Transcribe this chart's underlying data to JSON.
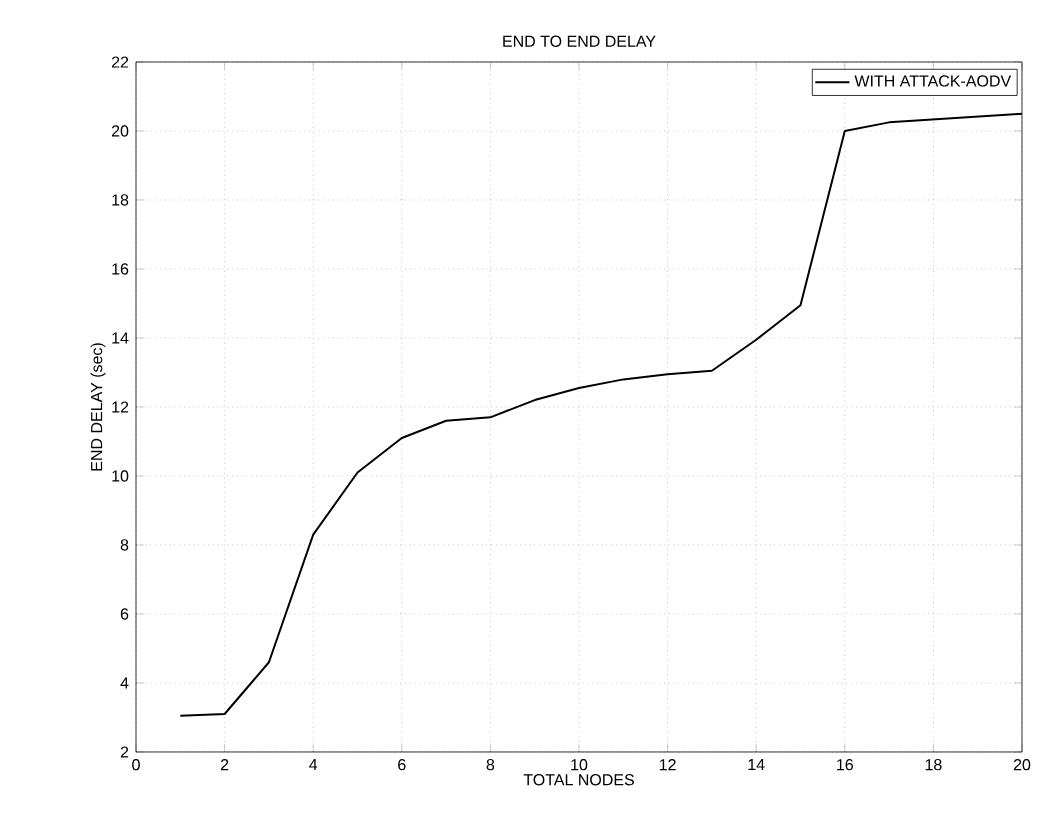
{
  "chart_data": {
    "type": "line",
    "title": "END TO END DELAY",
    "xlabel": "TOTAL NODES",
    "ylabel": "END DELAY (sec)",
    "x": [
      1,
      2,
      3,
      4,
      5,
      6,
      7,
      8,
      9,
      10,
      11,
      12,
      13,
      14,
      15,
      16,
      17,
      20
    ],
    "series": [
      {
        "name": "WITH ATTACK-AODV",
        "color": "#000000",
        "values": [
          3.05,
          3.1,
          4.6,
          8.3,
          10.1,
          11.1,
          11.6,
          11.7,
          12.2,
          12.55,
          12.8,
          12.95,
          13.05,
          13.95,
          14.95,
          20.0,
          20.25,
          20.5
        ]
      }
    ],
    "xlim": [
      0,
      20
    ],
    "ylim": [
      2,
      22
    ],
    "xticks": [
      0,
      2,
      4,
      6,
      8,
      10,
      12,
      14,
      16,
      18,
      20
    ],
    "yticks": [
      2,
      4,
      6,
      8,
      10,
      12,
      14,
      16,
      18,
      20,
      22
    ],
    "grid": true,
    "legend": "top right",
    "marker": "none",
    "line_style": "solid"
  }
}
